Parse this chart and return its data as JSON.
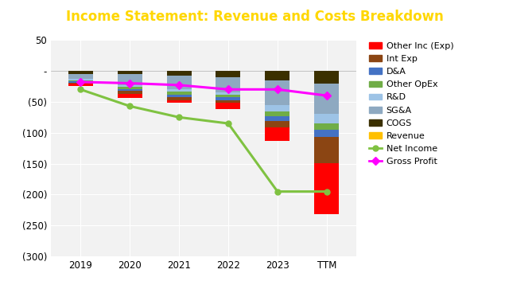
{
  "title": "Income Statement: Revenue and Costs Breakdown",
  "title_color": "#FFD700",
  "title_bg_color": "#4B0082",
  "categories": [
    "2019",
    "2020",
    "2021",
    "2022",
    "2023",
    "TTM"
  ],
  "bar_components": [
    {
      "name": "COGS",
      "color": "#3B3000",
      "values": [
        -5,
        -5,
        -8,
        -10,
        -15,
        -20
      ]
    },
    {
      "name": "SG&A",
      "color": "#8EA9C1",
      "values": [
        -8,
        -18,
        -22,
        -25,
        -40,
        -50
      ]
    },
    {
      "name": "R&D",
      "color": "#9DC3E6",
      "values": [
        -2,
        -3,
        -4,
        -4,
        -10,
        -15
      ]
    },
    {
      "name": "Other OpEx",
      "color": "#70AD47",
      "values": [
        -2,
        -3,
        -4,
        -4,
        -8,
        -10
      ]
    },
    {
      "name": "D&A",
      "color": "#4472C4",
      "values": [
        -2,
        -3,
        -4,
        -4,
        -8,
        -12
      ]
    },
    {
      "name": "Int Exp",
      "color": "#8B4513",
      "values": [
        -2,
        -5,
        -5,
        -5,
        -32,
        -42
      ]
    },
    {
      "name": "Other Inc (Exp)",
      "color": "#FF0000",
      "values": [
        -3,
        -7,
        -5,
        -10,
        22,
        -82
      ]
    },
    {
      "name": "Revenue",
      "color": "#FFC000",
      "values": [
        0,
        0,
        0,
        0,
        0,
        0
      ]
    }
  ],
  "net_income": [
    -30,
    -57,
    -75,
    -85,
    -195,
    -195
  ],
  "gross_profit": [
    -18,
    -20,
    -23,
    -30,
    -30,
    -40
  ],
  "ylim": [
    -300,
    50
  ],
  "yticks": [
    50,
    0,
    -50,
    -100,
    -150,
    -200,
    -250,
    -300
  ],
  "ytick_labels": [
    "50",
    "-",
    "(50)",
    "(100)",
    "(150)",
    "(200)",
    "(250)",
    "(300)"
  ],
  "background_color": "#FFFFFF",
  "plot_bg_color": "#F2F2F2",
  "bar_width": 0.5,
  "legend_order": [
    "Other Inc (Exp)",
    "Int Exp",
    "D&A",
    "Other OpEx",
    "R&D",
    "SG&A",
    "COGS",
    "Revenue",
    "Net Income",
    "Gross Profit"
  ]
}
